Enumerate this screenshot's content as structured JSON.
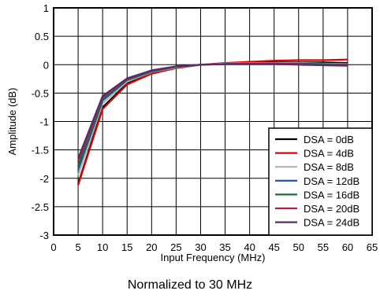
{
  "chart_data": {
    "type": "line",
    "xlabel": "Input Frequency (MHz)",
    "ylabel": "Amplitude (dB)",
    "caption": "Normalized to 30 MHz",
    "xlim": [
      0,
      65
    ],
    "ylim": [
      -3,
      1
    ],
    "xticks": [
      0,
      5,
      10,
      15,
      20,
      25,
      30,
      35,
      40,
      45,
      50,
      55,
      60,
      65
    ],
    "yticks": [
      1,
      0.5,
      0,
      -0.5,
      -1,
      -1.5,
      -2,
      -2.5,
      -3
    ],
    "yticklabels": [
      "1",
      "0.5",
      "0",
      "-0.5",
      "-1",
      "-1.5",
      "-2",
      "-2.5",
      "-3"
    ],
    "grid": true,
    "legend_position": "bottom-right",
    "x": [
      5,
      10,
      15,
      20,
      25,
      30,
      35,
      40,
      45,
      50,
      55,
      60
    ],
    "series": [
      {
        "name": "DSA = 0dB",
        "color": "#000000",
        "values": [
          -2.1,
          -0.75,
          -0.33,
          -0.15,
          -0.06,
          0.0,
          0.02,
          0.03,
          0.04,
          0.04,
          0.04,
          0.03
        ]
      },
      {
        "name": "DSA = 4dB",
        "color": "#e00000",
        "values": [
          -2.12,
          -0.78,
          -0.35,
          -0.16,
          -0.06,
          0.0,
          0.03,
          0.05,
          0.07,
          0.08,
          0.08,
          0.09
        ]
      },
      {
        "name": "DSA = 8dB",
        "color": "#b0b0b0",
        "values": [
          -1.95,
          -0.68,
          -0.3,
          -0.13,
          -0.05,
          0.0,
          0.02,
          0.03,
          0.03,
          0.03,
          0.02,
          0.01
        ]
      },
      {
        "name": "DSA = 12dB",
        "color": "#1f4e9e",
        "values": [
          -1.85,
          -0.63,
          -0.27,
          -0.12,
          -0.04,
          0.0,
          0.01,
          0.02,
          0.02,
          0.02,
          0.01,
          0.0
        ]
      },
      {
        "name": "DSA = 16dB",
        "color": "#1f6e3e",
        "values": [
          -1.78,
          -0.6,
          -0.26,
          -0.11,
          -0.04,
          0.0,
          0.01,
          0.02,
          0.02,
          0.01,
          0.01,
          0.0
        ]
      },
      {
        "name": "DSA = 20dB",
        "color": "#b02040",
        "values": [
          -1.7,
          -0.57,
          -0.25,
          -0.1,
          -0.03,
          0.0,
          0.01,
          0.02,
          0.02,
          0.01,
          0.0,
          -0.01
        ]
      },
      {
        "name": "DSA = 24dB",
        "color": "#5a2a6e",
        "values": [
          -1.65,
          -0.55,
          -0.24,
          -0.1,
          -0.03,
          0.0,
          0.01,
          0.01,
          0.01,
          0.0,
          -0.01,
          -0.02
        ]
      }
    ]
  }
}
